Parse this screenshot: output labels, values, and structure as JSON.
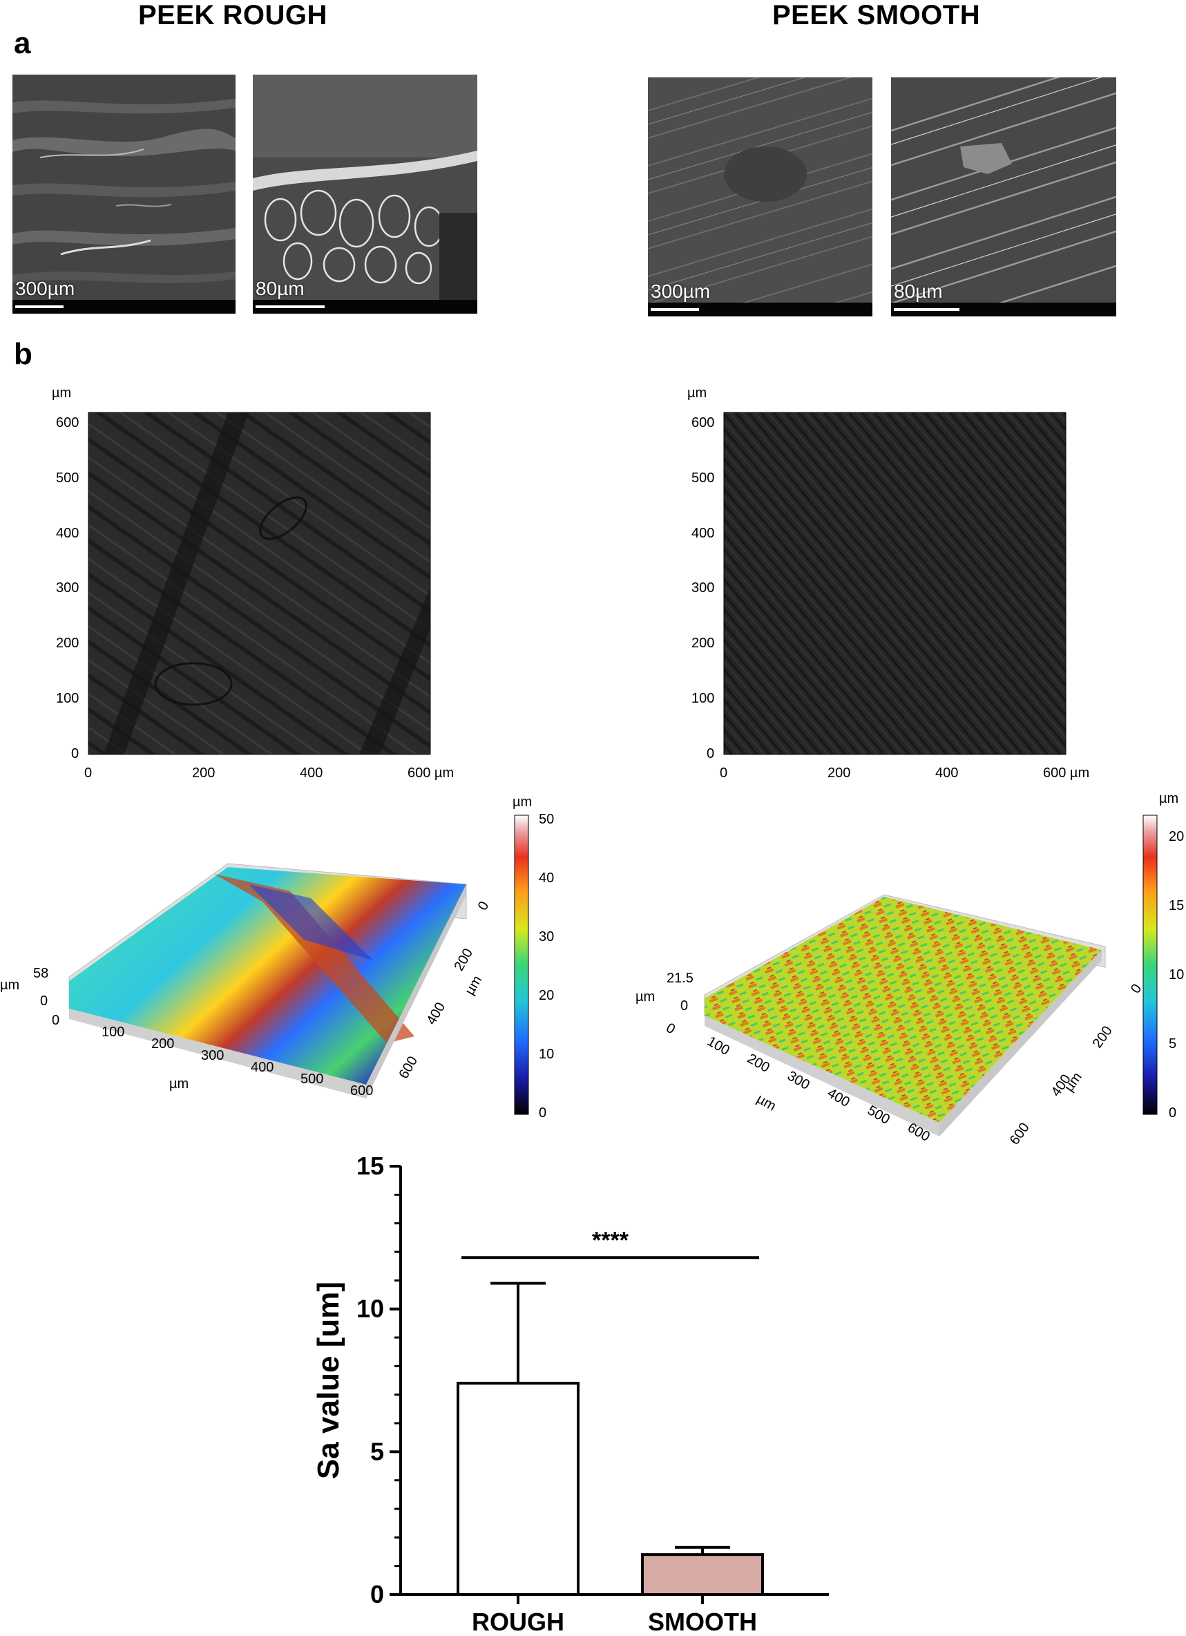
{
  "figure": {
    "columns": [
      "PEEK ROUGH",
      "PEEK SMOOTH"
    ],
    "panel_labels": [
      "a",
      "b"
    ]
  },
  "sem": [
    {
      "scale": "300µm"
    },
    {
      "scale": "80µm"
    },
    {
      "scale": "300µm"
    },
    {
      "scale": "80µm"
    }
  ],
  "maps2d": {
    "unit": "µm",
    "y_ticks": [
      "0",
      "100",
      "200",
      "300",
      "400",
      "500",
      "600"
    ],
    "x_ticks": [
      "0",
      "200",
      "400",
      "600 µm"
    ]
  },
  "surface3d": {
    "rough": {
      "z_max": "58",
      "z_min": "0",
      "z_unit": "µm",
      "x_ticks": [
        "0",
        "100",
        "200",
        "300",
        "400",
        "500",
        "600"
      ],
      "x_unit": "µm",
      "y_ticks": [
        "0",
        "200",
        "400",
        "600"
      ],
      "y_unit": "µm",
      "colorbar_unit": "µm",
      "colorbar_ticks": [
        "0",
        "10",
        "20",
        "30",
        "40",
        "50"
      ]
    },
    "smooth": {
      "z_max": "21.5",
      "z_min": "0",
      "z_unit": "µm",
      "x_ticks": [
        "0",
        "100",
        "200",
        "300",
        "400",
        "500",
        "600"
      ],
      "x_unit": "µm",
      "y_ticks": [
        "0",
        "200",
        "400",
        "600"
      ],
      "y_unit": "µm",
      "colorbar_unit": "µm",
      "colorbar_ticks": [
        "0",
        "5",
        "10",
        "15",
        "20"
      ]
    }
  },
  "chart_data": {
    "type": "bar",
    "categories": [
      "ROUGH",
      "SMOOTH"
    ],
    "values": [
      7.4,
      1.4
    ],
    "error_upper": [
      10.9,
      1.65
    ],
    "bar_colors": [
      "#ffffff",
      "#d8aaa6"
    ],
    "ylabel": "Sa value [um]",
    "ylim": [
      0,
      15
    ],
    "y_ticks": [
      0,
      5,
      10,
      15
    ],
    "significance": "****"
  }
}
